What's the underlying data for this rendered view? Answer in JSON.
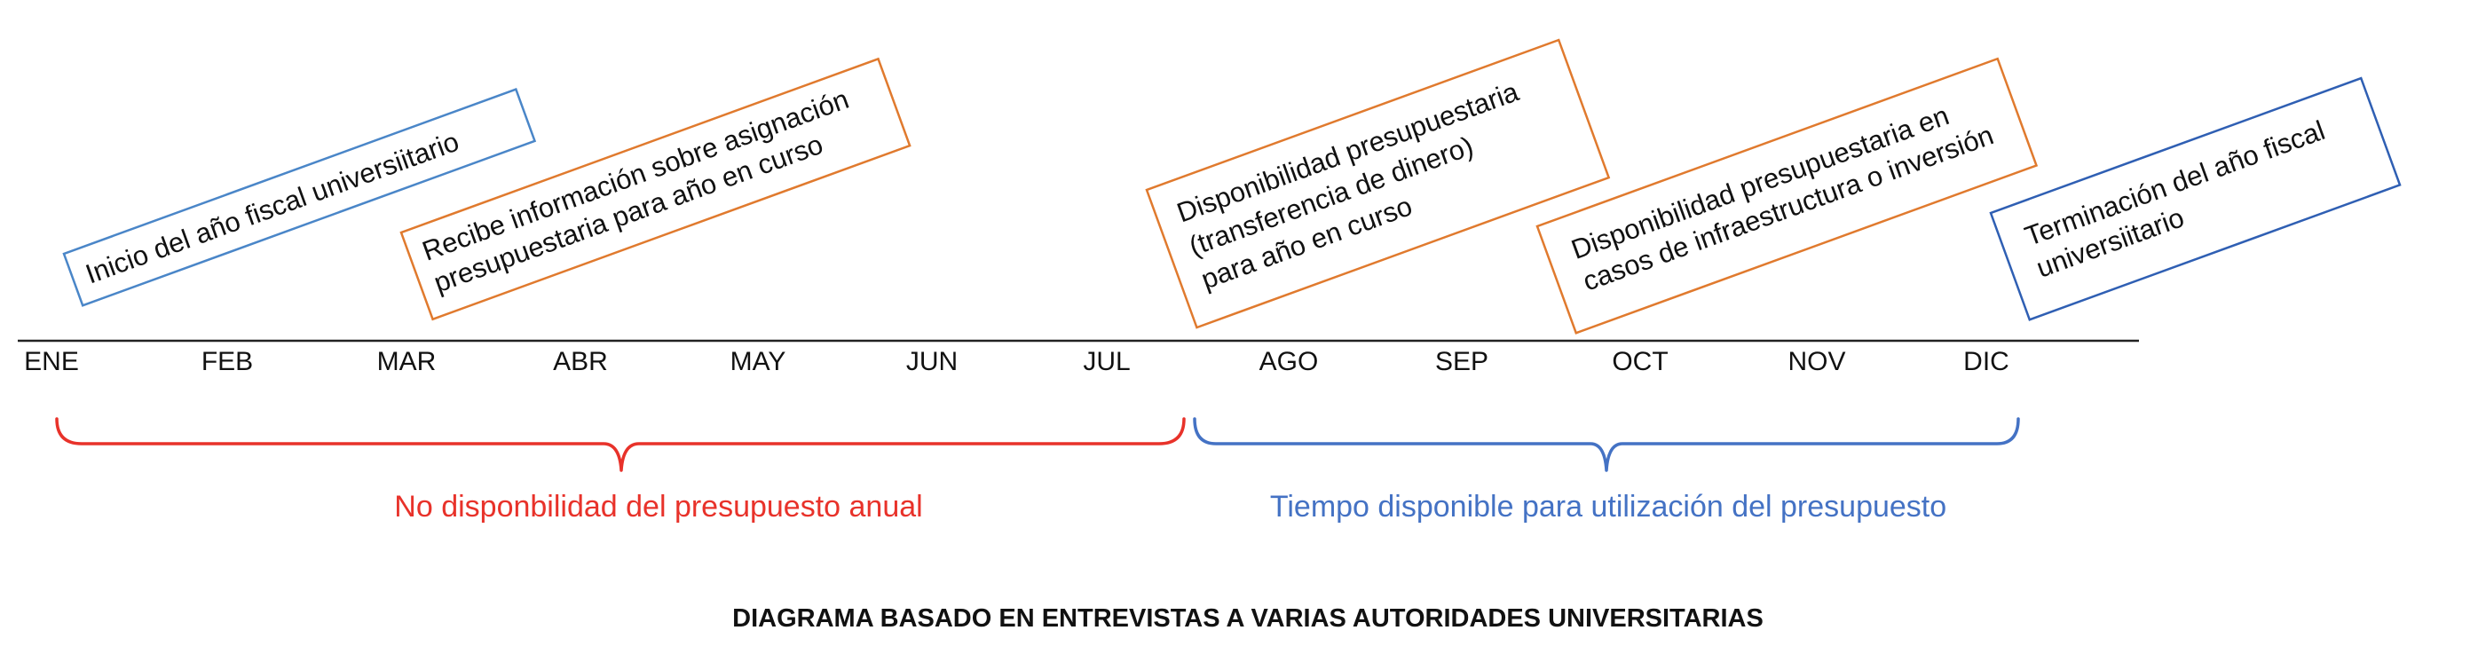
{
  "events": [
    {
      "id": "inicio",
      "lines": [
        "Inicio del año fiscal universiitario"
      ],
      "color": "#4a86c8"
    },
    {
      "id": "recibe",
      "lines": [
        "Recibe información sobre asignación",
        "presupuestaria para año en curso"
      ],
      "color": "#e07a2e"
    },
    {
      "id": "disponibilidad",
      "lines": [
        "Disponibilidad presupuestaria",
        "(transferencia de dinero)",
        "para año en curso"
      ],
      "color": "#e07a2e"
    },
    {
      "id": "infraestructura",
      "lines": [
        "Disponibilidad presupuestaria en",
        "casos de infraestructura o inversión"
      ],
      "color": "#e07a2e"
    },
    {
      "id": "terminacion",
      "lines": [
        "Terminación del año fiscal",
        "universiitario"
      ],
      "color": "#2f5fb3"
    }
  ],
  "months": [
    "ENE",
    "FEB",
    "MAR",
    "ABR",
    "MAY",
    "JUN",
    "JUL",
    "AGO",
    "SEP",
    "OCT",
    "NOV",
    "DIC"
  ],
  "periods": [
    {
      "id": "no-disponibilidad",
      "label": "No disponbilidad del presupuesto anual",
      "color": "#e8322a"
    },
    {
      "id": "tiempo-disponible",
      "label": "Tiempo disponible para utilización del presupuesto",
      "color": "#4472c4"
    }
  ],
  "caption": "DIAGRAMA BASADO EN ENTREVISTAS A VARIAS AUTORIDADES UNIVERSITARIAS"
}
